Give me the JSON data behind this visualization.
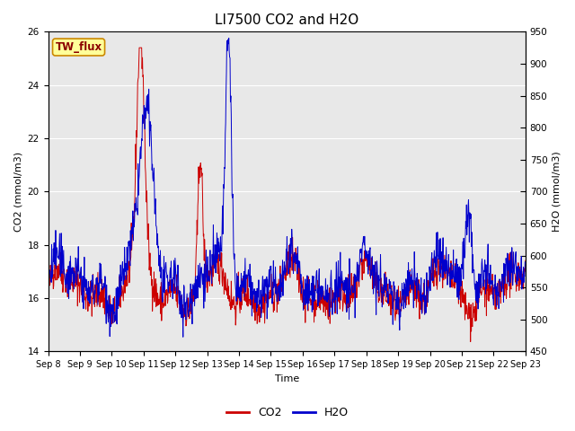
{
  "title": "LI7500 CO2 and H2O",
  "xlabel": "Time",
  "ylabel_left": "CO2 (mmol/m3)",
  "ylabel_right": "H2O (mmol/m3)",
  "ylim_left": [
    14,
    26
  ],
  "ylim_right": [
    450,
    950
  ],
  "yticks_left": [
    14,
    16,
    18,
    20,
    22,
    24,
    26
  ],
  "yticks_right": [
    450,
    500,
    550,
    600,
    650,
    700,
    750,
    800,
    850,
    900,
    950
  ],
  "x_labels": [
    "Sep 8",
    "Sep 9",
    "Sep 10",
    "Sep 11",
    "Sep 12",
    "Sep 13",
    "Sep 14",
    "Sep 15",
    "Sep 16",
    "Sep 17",
    "Sep 18",
    "Sep 19",
    "Sep 20",
    "Sep 21",
    "Sep 22",
    "Sep 23"
  ],
  "fig_bg_color": "#ffffff",
  "plot_bg_color": "#e8e8e8",
  "co2_color": "#cc0000",
  "h2o_color": "#0000cc",
  "annotation_text": "TW_flux",
  "annotation_bg": "#ffff99",
  "annotation_border": "#cc8800",
  "title_fontsize": 11,
  "axis_fontsize": 8,
  "tick_fontsize": 7.5,
  "legend_fontsize": 9,
  "linewidth": 0.7
}
